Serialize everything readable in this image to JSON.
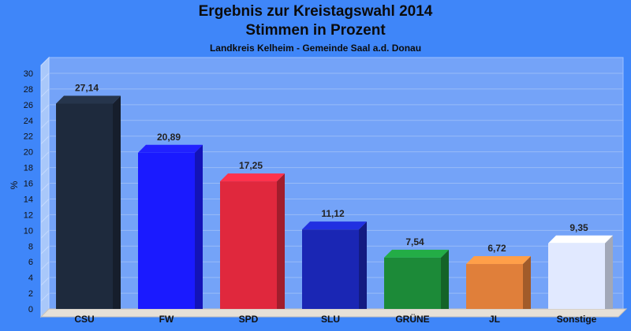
{
  "chart_data": {
    "type": "bar",
    "title": "Ergebnis zur Kreistagswahl 2014",
    "title_line2": "Stimmen in Prozent",
    "subtitle": "Landkreis Kelheim - Gemeinde Saal a.d. Donau",
    "xlabel": "",
    "ylabel": "%",
    "ylim": [
      0,
      30
    ],
    "yticks": [
      0,
      2,
      4,
      6,
      8,
      10,
      12,
      14,
      16,
      18,
      20,
      22,
      24,
      26,
      28,
      30
    ],
    "ytick_labels": [
      "0",
      "2",
      "4",
      "6",
      "8",
      "10",
      "12",
      "14",
      "16",
      "18",
      "20",
      "22",
      "24",
      "26",
      "28",
      "30"
    ],
    "grid": true,
    "categories": [
      "CSU",
      "FW",
      "SPD",
      "SLU",
      "GRÜNE",
      "JL",
      "Sonstige"
    ],
    "values": [
      27.14,
      20.89,
      17.25,
      11.12,
      7.54,
      6.72,
      9.35
    ],
    "value_labels": [
      "27,14",
      "20,89",
      "17,25",
      "11,12",
      "7,54",
      "6,72",
      "9,35"
    ],
    "colors": [
      "#1e2a3d",
      "#1a1aff",
      "#e0283d",
      "#1a26b4",
      "#1c8a38",
      "#e07f3a",
      "#e1e9ff"
    ]
  }
}
